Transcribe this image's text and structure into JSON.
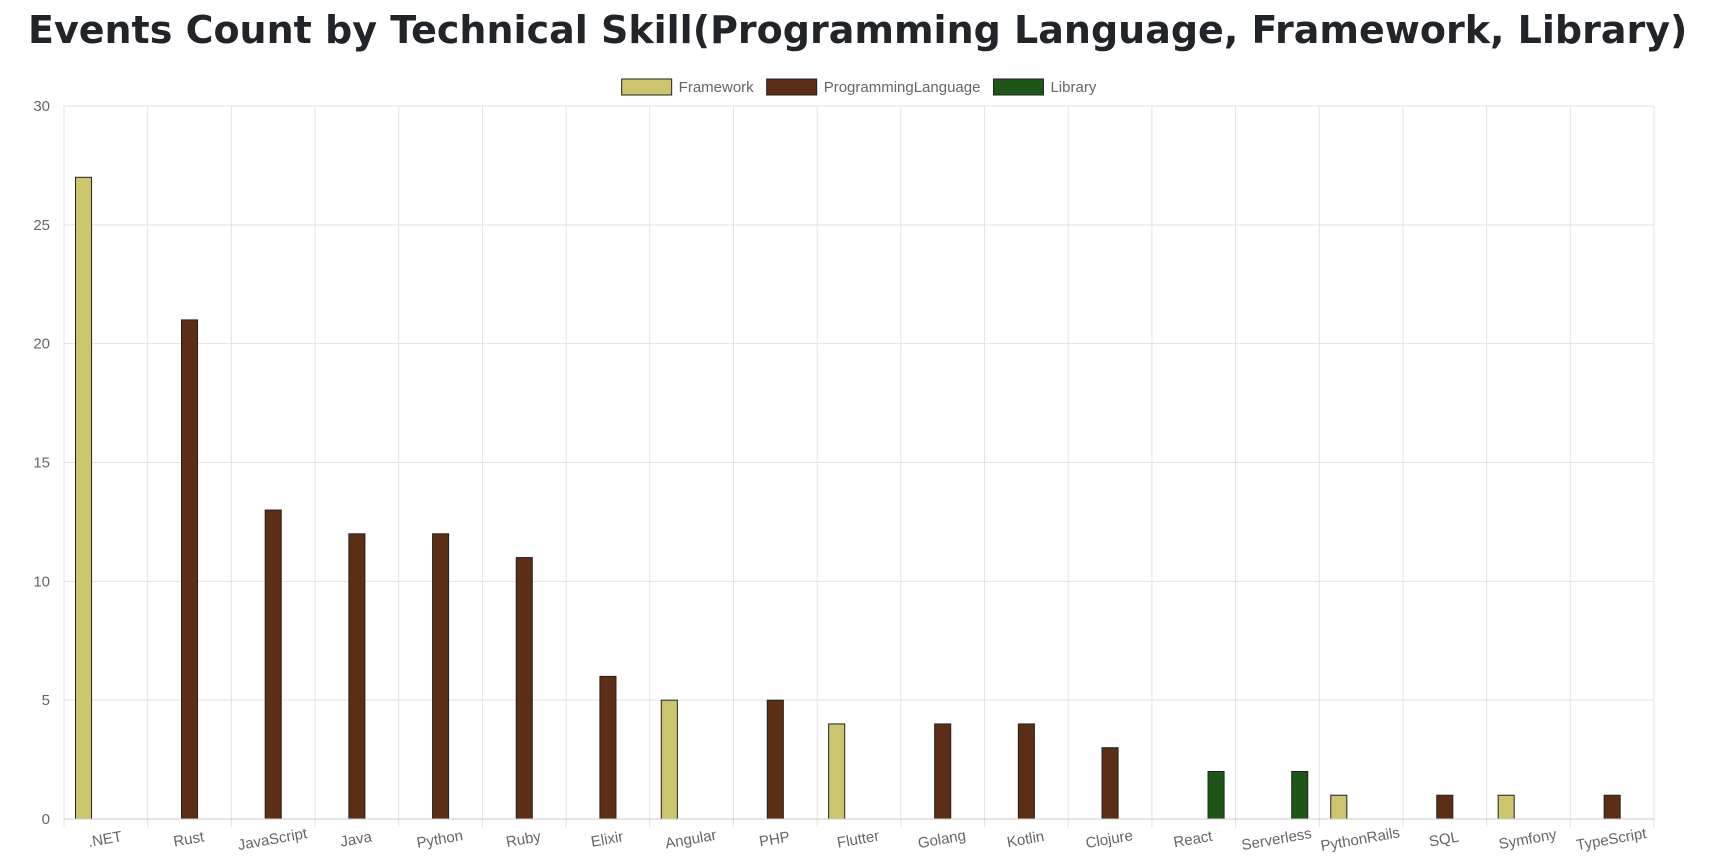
{
  "page": {
    "title": "Events Count by Technical Skill(Programming Language, Framework, Library)"
  },
  "colors": {
    "Framework": "#cdc46e",
    "ProgrammingLanguage": "#5c2e15",
    "Library": "#1e5618",
    "grid": "#e3e3e3",
    "axis_text": "#666666",
    "bar_border": "#222222"
  },
  "chart_data": {
    "type": "bar",
    "title": "Events Count by Technical Skill(Programming Language, Framework, Library)",
    "xlabel": "",
    "ylabel": "",
    "ylim": [
      0,
      30
    ],
    "yticks": [
      0,
      5,
      10,
      15,
      20,
      25,
      30
    ],
    "grid": true,
    "legend_position": "top-center",
    "categories": [
      ".NET",
      "Rust",
      "JavaScript",
      "Java",
      "Python",
      "Ruby",
      "Elixir",
      "Angular",
      "PHP",
      "Flutter",
      "Golang",
      "Kotlin",
      "Clojure",
      "React",
      "Serverless",
      "PythonRails",
      "SQL",
      "Symfony",
      "TypeScript"
    ],
    "series": [
      {
        "name": "Framework",
        "values": [
          27,
          0,
          0,
          0,
          0,
          0,
          0,
          5,
          0,
          4,
          0,
          0,
          0,
          0,
          0,
          1,
          0,
          1,
          0
        ]
      },
      {
        "name": "ProgrammingLanguage",
        "values": [
          0,
          21,
          13,
          12,
          12,
          11,
          6,
          0,
          5,
          0,
          4,
          4,
          3,
          0,
          0,
          0,
          1,
          0,
          1
        ]
      },
      {
        "name": "Library",
        "values": [
          0,
          0,
          0,
          0,
          0,
          0,
          0,
          0,
          0,
          0,
          0,
          0,
          0,
          2,
          2,
          0,
          0,
          0,
          0
        ]
      }
    ]
  }
}
